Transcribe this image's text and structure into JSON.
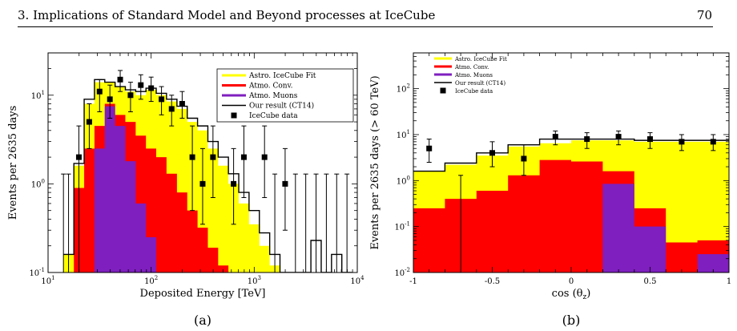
{
  "header": {
    "title": "3. Implications of Standard Model and Beyond processes at IceCube",
    "page_number": "70"
  },
  "colors": {
    "astro": "#ffff00",
    "conv": "#ff0000",
    "muons": "#7f1fbf",
    "ours": "#000000",
    "data": "#000000"
  },
  "chart_data": [
    {
      "type": "bar",
      "panel": "a",
      "caption": "(a)",
      "xlabel": "Deposited Energy [TeV]",
      "ylabel": "Events per 2635 days",
      "xscale": "log",
      "yscale": "log",
      "xlim": [
        10,
        10000
      ],
      "ylim": [
        0.1,
        30
      ],
      "x_tick_labels": [
        {
          "base": "10",
          "exp": "1"
        },
        {
          "base": "10",
          "exp": "2"
        },
        {
          "base": "10",
          "exp": "3"
        },
        {
          "base": "10",
          "exp": "4"
        }
      ],
      "y_tick_labels": [
        {
          "base": "10",
          "exp": "-1"
        },
        {
          "base": "10",
          "exp": "0"
        },
        {
          "base": "10",
          "exp": "1"
        }
      ],
      "legend": [
        "Astro. IceCube Fit",
        "Atmo. Conv.",
        "Atmo. Muons",
        "Our result (CT14)",
        "IceCube data"
      ],
      "bin_edges": [
        14.1,
        17.8,
        22.4,
        28.2,
        35.5,
        44.7,
        56.2,
        70.8,
        89.1,
        112,
        141,
        178,
        224,
        282,
        355,
        447,
        562,
        708,
        891,
        1122,
        1413,
        1778,
        2239,
        2818,
        3548,
        4467,
        5623,
        7079,
        8913
      ],
      "series": [
        {
          "name": "Astro. IceCube Fit",
          "values": [
            0.16,
            1.6,
            8.0,
            14.0,
            14.0,
            12.5,
            11.0,
            10.0,
            11.5,
            10.0,
            8.5,
            7.0,
            5.0,
            4.0,
            2.5,
            1.6,
            1.0,
            0.6,
            0.35,
            0.2,
            0.12,
            0.1,
            0.1,
            0.1,
            0.1,
            0.1,
            0.1,
            0.1
          ]
        },
        {
          "name": "Atmo. Conv.",
          "values": [
            0.1,
            0.9,
            2.5,
            4.5,
            8.0,
            6.0,
            5.0,
            3.5,
            2.5,
            2.0,
            1.3,
            0.8,
            0.5,
            0.32,
            0.19,
            0.12,
            0.1,
            0.1,
            0.1,
            0.1,
            0.1,
            0.1,
            0.1,
            0.1,
            0.1,
            0.1,
            0.1,
            0.1
          ]
        },
        {
          "name": "Atmo. Muons",
          "values": [
            0.1,
            0.1,
            0.1,
            2.5,
            7.5,
            4.5,
            1.8,
            0.6,
            0.25,
            0.1,
            0.1,
            0.1,
            0.1,
            0.1,
            0.1,
            0.1,
            0.1,
            0.1,
            0.1,
            0.1,
            0.1,
            0.1,
            0.1,
            0.1,
            0.1,
            0.1,
            0.1,
            0.1
          ]
        },
        {
          "name": "Our result (CT14)",
          "values": [
            0.16,
            1.7,
            9.0,
            15.0,
            14.0,
            12.5,
            11.5,
            11.0,
            12.0,
            10.5,
            9.0,
            7.5,
            5.5,
            4.5,
            3.0,
            2.0,
            1.3,
            0.8,
            0.5,
            0.28,
            0.16,
            0.1,
            0.1,
            0.1,
            0.23,
            0.1,
            0.16,
            0.1
          ]
        }
      ],
      "data_points": [
        {
          "x": 19.9,
          "y": 2.0,
          "lo": 0.1,
          "hi": 4.5
        },
        {
          "x": 25.1,
          "y": 5.0,
          "lo": 2.5,
          "hi": 8.0
        },
        {
          "x": 31.6,
          "y": 11.0,
          "lo": 6.5,
          "hi": 15.0
        },
        {
          "x": 39.8,
          "y": 9.0,
          "lo": 5.5,
          "hi": 13.0
        },
        {
          "x": 50.1,
          "y": 15.0,
          "lo": 11.0,
          "hi": 19.0
        },
        {
          "x": 63.1,
          "y": 10.0,
          "lo": 6.5,
          "hi": 14.0
        },
        {
          "x": 79.4,
          "y": 13.0,
          "lo": 9.0,
          "hi": 17.0
        },
        {
          "x": 100,
          "y": 12.0,
          "lo": 8.5,
          "hi": 16.0
        },
        {
          "x": 126,
          "y": 9.0,
          "lo": 6.0,
          "hi": 12.5
        },
        {
          "x": 158,
          "y": 7.0,
          "lo": 4.5,
          "hi": 10.0
        },
        {
          "x": 200,
          "y": 8.0,
          "lo": 5.5,
          "hi": 11.0
        },
        {
          "x": 251,
          "y": 2.0,
          "lo": 0.5,
          "hi": 4.5
        },
        {
          "x": 316,
          "y": 1.0,
          "lo": 0.35,
          "hi": 2.5
        },
        {
          "x": 398,
          "y": 2.0,
          "lo": 0.7,
          "hi": 4.5
        },
        {
          "x": 631,
          "y": 1.0,
          "lo": 0.35,
          "hi": 2.5
        },
        {
          "x": 794,
          "y": 2.0,
          "lo": 0.7,
          "hi": 4.5
        },
        {
          "x": 1259,
          "y": 2.0,
          "lo": 0.7,
          "hi": 4.5
        },
        {
          "x": 1995,
          "y": 1.0,
          "lo": 0.3,
          "hi": 2.5
        }
      ],
      "upper_limits": [
        14.1,
        15.8,
        1585,
        2512,
        3162,
        3981,
        5012,
        6310,
        7943
      ],
      "upper_limit_value": 1.29
    },
    {
      "type": "bar",
      "panel": "b",
      "caption": "(b)",
      "xlabel": "cos (θ",
      "xlabel_sub": "z",
      "xlabel_tail": ")",
      "ylabel": "Events per 2635 days (> 60 TeV)",
      "yscale": "log",
      "xlim": [
        -1,
        1
      ],
      "ylim": [
        0.01,
        600
      ],
      "x_tick_labels": [
        "-1",
        "-0.5",
        "0",
        "0.5",
        "1"
      ],
      "y_tick_labels": [
        {
          "base": "10",
          "exp": "-2"
        },
        {
          "base": "10",
          "exp": "-1"
        },
        {
          "base": "10",
          "exp": "0"
        },
        {
          "base": "10",
          "exp": "1"
        },
        {
          "base": "10",
          "exp": "2"
        }
      ],
      "legend": [
        "Astro. IceCube Fit",
        "Atmo. Conv.",
        "Atmo. Muons",
        "Our result (CT14)",
        "IceCube data"
      ],
      "bin_edges": [
        -1,
        -0.8,
        -0.6,
        -0.4,
        -0.2,
        0,
        0.2,
        0.4,
        0.6,
        0.8,
        1
      ],
      "series": [
        {
          "name": "Astro. IceCube Fit",
          "values": [
            1.6,
            2.2,
            3.5,
            5.5,
            6.5,
            7.5,
            7.5,
            7.0,
            7.0,
            7.0
          ]
        },
        {
          "name": "Atmo. Conv.",
          "values": [
            0.25,
            0.4,
            0.6,
            1.3,
            2.8,
            2.6,
            1.6,
            0.25,
            0.045,
            0.05
          ]
        },
        {
          "name": "Atmo. Muons",
          "values": [
            0.01,
            0.01,
            0.01,
            0.01,
            0.01,
            0.01,
            0.85,
            0.1,
            0.01,
            0.025
          ]
        },
        {
          "name": "Our result (CT14)",
          "values": [
            1.6,
            2.4,
            4.0,
            6.0,
            8.0,
            8.0,
            8.0,
            7.5,
            7.5,
            7.5
          ]
        }
      ],
      "data_points": [
        {
          "x": -0.9,
          "y": 5.0,
          "lo": 2.5,
          "hi": 8.0
        },
        {
          "x": -0.5,
          "y": 4.0,
          "lo": 2.0,
          "hi": 7.0
        },
        {
          "x": -0.3,
          "y": 3.0,
          "lo": 1.3,
          "hi": 6.0
        },
        {
          "x": -0.1,
          "y": 9.0,
          "lo": 6.0,
          "hi": 12.0
        },
        {
          "x": 0.1,
          "y": 8.0,
          "lo": 5.0,
          "hi": 11.0
        },
        {
          "x": 0.3,
          "y": 9.0,
          "lo": 6.0,
          "hi": 12.0
        },
        {
          "x": 0.5,
          "y": 8.0,
          "lo": 5.0,
          "hi": 11.0
        },
        {
          "x": 0.7,
          "y": 7.0,
          "lo": 4.5,
          "hi": 10.0
        },
        {
          "x": 0.9,
          "y": 7.0,
          "lo": 4.5,
          "hi": 10.0
        }
      ],
      "upper_limits": [
        -0.7
      ],
      "upper_limit_value": 1.3
    }
  ]
}
